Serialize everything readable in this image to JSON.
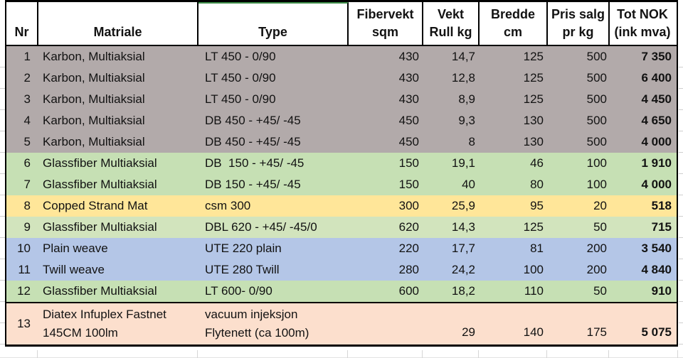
{
  "table": {
    "header": {
      "nr": "Nr",
      "matriale": "Matriale",
      "type": "Type",
      "fibervekt_1": "Fibervekt",
      "fibervekt_2": "sqm",
      "vekt_1": "Vekt",
      "vekt_2": "Rull kg",
      "bredde_1": "Bredde",
      "bredde_2": "cm",
      "pris_1": "Pris salg",
      "pris_2": "pr kg",
      "tot_1": "Tot NOK",
      "tot_2": "(ink mva)"
    },
    "rows": [
      {
        "nr": "1",
        "matriale": "Karbon, Multiaksial",
        "matriale2": "",
        "type": "LT 450 - 0/90",
        "type2": "",
        "fibervekt": "430",
        "vekt": "14,7",
        "bredde": "125",
        "pris": "500",
        "tot": "7 350",
        "fill": "gray"
      },
      {
        "nr": "2",
        "matriale": "Karbon, Multiaksial",
        "matriale2": "",
        "type": "LT 450 - 0/90",
        "type2": "",
        "fibervekt": "430",
        "vekt": "12,8",
        "bredde": "125",
        "pris": "500",
        "tot": "6 400",
        "fill": "gray"
      },
      {
        "nr": "3",
        "matriale": "Karbon, Multiaksial",
        "matriale2": "",
        "type": "LT 450 - 0/90",
        "type2": "",
        "fibervekt": "430",
        "vekt": "8,9",
        "bredde": "125",
        "pris": "500",
        "tot": "4 450",
        "fill": "gray"
      },
      {
        "nr": "4",
        "matriale": "Karbon, Multiaksial",
        "matriale2": "",
        "type": "DB 450 - +45/ -45",
        "type2": "",
        "fibervekt": "450",
        "vekt": "9,3",
        "bredde": "130",
        "pris": "500",
        "tot": "4 650",
        "fill": "gray"
      },
      {
        "nr": "5",
        "matriale": "Karbon, Multiaksial",
        "matriale2": "",
        "type": "DB 450 - +45/ -45",
        "type2": "",
        "fibervekt": "450",
        "vekt": "8",
        "bredde": "130",
        "pris": "500",
        "tot": "4 000",
        "fill": "gray"
      },
      {
        "nr": "6",
        "matriale": "Glassfiber Multiaksial",
        "matriale2": "",
        "type": "DB  150 - +45/ -45",
        "type2": "",
        "fibervekt": "150",
        "vekt": "19,1",
        "bredde": "46",
        "pris": "100",
        "tot": "1 910",
        "fill": "green"
      },
      {
        "nr": "7",
        "matriale": "Glassfiber Multiaksial",
        "matriale2": "",
        "type": "DB 150 - +45/ -45",
        "type2": "",
        "fibervekt": "150",
        "vekt": "40",
        "bredde": "80",
        "pris": "100",
        "tot": "4 000",
        "fill": "green"
      },
      {
        "nr": "8",
        "matriale": "Copped Strand Mat",
        "matriale2": "",
        "type": "csm 300",
        "type2": "",
        "fibervekt": "300",
        "vekt": "25,9",
        "bredde": "95",
        "pris": "20",
        "tot": "518",
        "fill": "yellow"
      },
      {
        "nr": "9",
        "matriale": "Glassfiber Multiaksial",
        "matriale2": "",
        "type": "DBL 620 - +45/ -45/0",
        "type2": "",
        "fibervekt": "620",
        "vekt": "14,3",
        "bredde": "125",
        "pris": "50",
        "tot": "715",
        "fill": "green_light"
      },
      {
        "nr": "10",
        "matriale": "Plain weave",
        "matriale2": "",
        "type": "UTE 220 plain",
        "type2": "",
        "fibervekt": "220",
        "vekt": "17,7",
        "bredde": "81",
        "pris": "200",
        "tot": "3 540",
        "fill": "blue"
      },
      {
        "nr": "11",
        "matriale": "Twill weave",
        "matriale2": "",
        "type": "UTE 280 Twill",
        "type2": "",
        "fibervekt": "280",
        "vekt": "24,2",
        "bredde": "100",
        "pris": "200",
        "tot": "4 840",
        "fill": "blue"
      },
      {
        "nr": "12",
        "matriale": "Glassfiber Multiaksial",
        "matriale2": "",
        "type": "LT 600- 0/90",
        "type2": "",
        "fibervekt": "600",
        "vekt": "18,2",
        "bredde": "110",
        "pris": "50",
        "tot": "910",
        "fill": "green"
      },
      {
        "nr": "13",
        "matriale": "Diatex Infuplex Fastnet",
        "matriale2": "145CM 100lm",
        "type": "vacuum injeksjon",
        "type2": "Flytenett (ca 100m)",
        "fibervekt": "",
        "vekt": "29",
        "bredde": "140",
        "pris": "175",
        "tot": "5 075",
        "fill": "salmon"
      }
    ]
  },
  "colors": {
    "gray": "#b2aaaa",
    "green": "#c6e0b4",
    "green_light": "#d2e4bd",
    "yellow": "#ffe699",
    "blue": "#b4c6e7",
    "salmon": "#fcdfcd",
    "header_accent_green": "#3f8e4a"
  }
}
